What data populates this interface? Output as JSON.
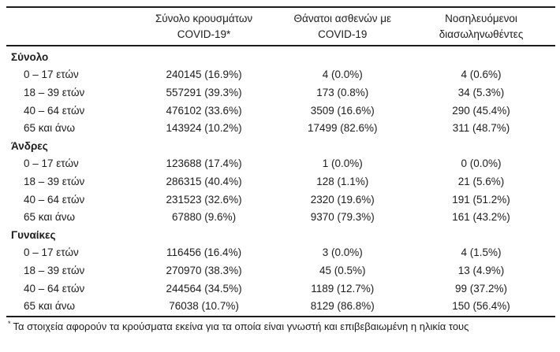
{
  "chart_data": {
    "type": "table",
    "headers": [
      {
        "line1": "Σύνολο κρουσμάτων",
        "line2": "COVID-19*"
      },
      {
        "line1": "Θάνατοι ασθενών με",
        "line2": "COVID-19"
      },
      {
        "line1": "Νοσηλευόμενοι",
        "line2": "διασωληνωθέντες"
      }
    ],
    "sections": [
      {
        "label": "Σύνολο",
        "rows": [
          {
            "label": "0 – 17 ετών",
            "cases": "240145 (16.9%)",
            "deaths": "4 (0.0%)",
            "intubated": "4 (0.6%)"
          },
          {
            "label": "18 – 39 ετών",
            "cases": "557291 (39.3%)",
            "deaths": "173 (0.8%)",
            "intubated": "34 (5.3%)"
          },
          {
            "label": "40 – 64 ετών",
            "cases": "476102 (33.6%)",
            "deaths": "3509 (16.6%)",
            "intubated": "290 (45.4%)"
          },
          {
            "label": "65 και άνω",
            "cases": "143924 (10.2%)",
            "deaths": "17499 (82.6%)",
            "intubated": "311 (48.7%)"
          }
        ]
      },
      {
        "label": "Άνδρες",
        "rows": [
          {
            "label": "0 – 17 ετών",
            "cases": "123688 (17.4%)",
            "deaths": "1 (0.0%)",
            "intubated": "0 (0.0%)"
          },
          {
            "label": "18 – 39 ετών",
            "cases": "286315 (40.4%)",
            "deaths": "128 (1.1%)",
            "intubated": "21 (5.6%)"
          },
          {
            "label": "40 – 64 ετών",
            "cases": "231523 (32.6%)",
            "deaths": "2320 (19.6%)",
            "intubated": "191 (51.2%)"
          },
          {
            "label": "65 και άνω",
            "cases": "67880 (9.6%)",
            "deaths": "9370 (79.3%)",
            "intubated": "161 (43.2%)"
          }
        ]
      },
      {
        "label": "Γυναίκες",
        "rows": [
          {
            "label": "0 – 17 ετών",
            "cases": "116456 (16.4%)",
            "deaths": "3 (0.0%)",
            "intubated": "4 (1.5%)"
          },
          {
            "label": "18 – 39 ετών",
            "cases": "270970 (38.3%)",
            "deaths": "45 (0.5%)",
            "intubated": "13 (4.9%)"
          },
          {
            "label": "40 – 64 ετών",
            "cases": "244564 (34.5%)",
            "deaths": "1189 (12.7%)",
            "intubated": "99 (37.2%)"
          },
          {
            "label": "65 και άνω",
            "cases": "76038 (10.7%)",
            "deaths": "8129 (86.8%)",
            "intubated": "150 (56.4%)"
          }
        ]
      }
    ],
    "footnote": {
      "marker": "*",
      "text": "Τα στοιχεία αφορούν τα κρούσματα εκείνα για τα οποία είναι γνωστή και επιβεβαιωμένη η ηλικία τους"
    }
  },
  "colors": {
    "text": "#1c1c1c",
    "rule": "#1c1c1c",
    "background": "#ffffff"
  }
}
